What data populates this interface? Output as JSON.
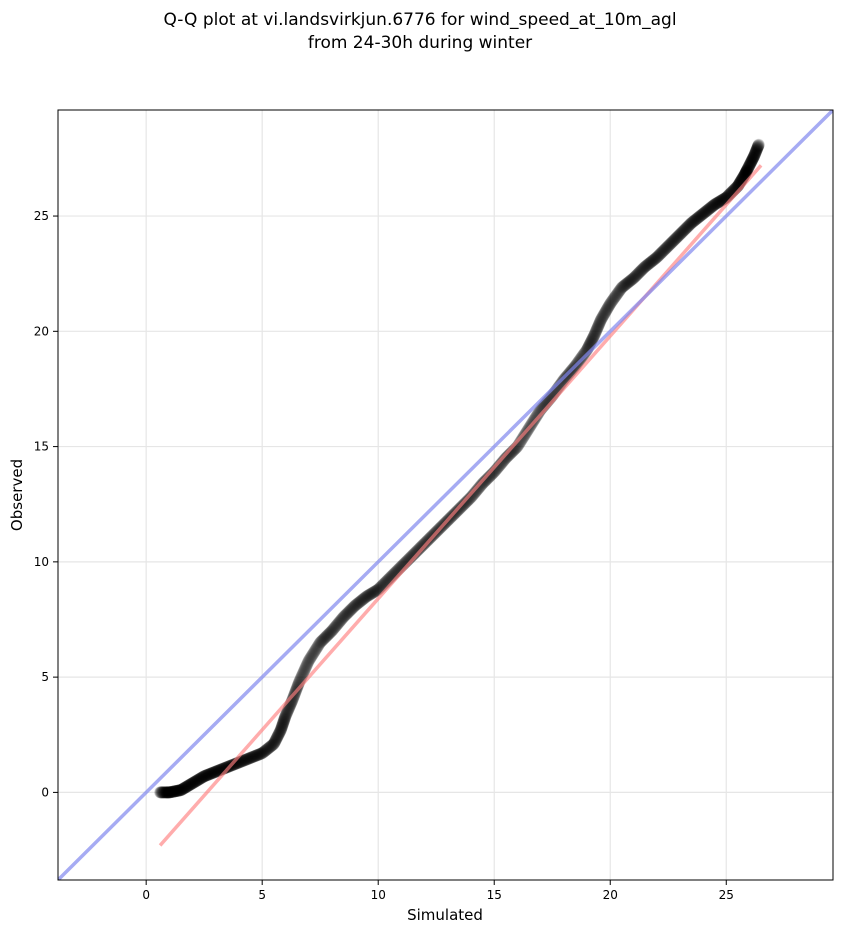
{
  "chart_data": {
    "type": "scatter",
    "title_lines": [
      "Q-Q plot at vi.landsvirkjun.6776 for wind_speed_at_10m_agl",
      "from 24-30h during winter"
    ],
    "xlabel": "Simulated",
    "ylabel": "Observed",
    "xlim": [
      -3.8,
      29.6
    ],
    "ylim": [
      -3.8,
      29.6
    ],
    "xticks": [
      0,
      5,
      10,
      15,
      20,
      25
    ],
    "yticks": [
      0,
      5,
      10,
      15,
      20,
      25
    ],
    "grid": true,
    "colors": {
      "points": "#000000",
      "fit_line": "#ff8080",
      "identity_line": "#8088ee"
    },
    "identity_line": {
      "x": [
        -3.8,
        29.6
      ],
      "y": [
        -3.8,
        29.6
      ]
    },
    "fit_line": {
      "x": [
        0.6,
        26.5
      ],
      "y": [
        -2.3,
        27.2
      ]
    },
    "quantile_curve": {
      "x": [
        0.6,
        1.0,
        1.5,
        2.0,
        2.5,
        3.0,
        3.5,
        4.0,
        4.5,
        5.0,
        5.5,
        5.8,
        6.0,
        6.3,
        6.6,
        7.0,
        7.5,
        8.0,
        8.5,
        9.0,
        9.5,
        10.0,
        10.5,
        11.0,
        11.5,
        12.0,
        12.5,
        13.0,
        13.5,
        14.0,
        14.5,
        15.0,
        15.5,
        16.0,
        16.5,
        17.0,
        17.5,
        18.0,
        18.5,
        19.0,
        19.3,
        19.6,
        20.0,
        20.5,
        21.0,
        21.5,
        22.0,
        22.5,
        23.0,
        23.5,
        24.0,
        24.5,
        25.0,
        25.5,
        25.8,
        26.0,
        26.2,
        26.4
      ],
      "y": [
        0.0,
        0.0,
        0.1,
        0.4,
        0.7,
        0.9,
        1.1,
        1.3,
        1.5,
        1.7,
        2.1,
        2.7,
        3.3,
        4.0,
        4.8,
        5.7,
        6.5,
        7.0,
        7.6,
        8.1,
        8.5,
        8.8,
        9.3,
        9.8,
        10.3,
        10.8,
        11.3,
        11.8,
        12.3,
        12.8,
        13.4,
        13.9,
        14.5,
        15.0,
        15.8,
        16.6,
        17.2,
        17.9,
        18.5,
        19.2,
        19.8,
        20.5,
        21.2,
        21.9,
        22.3,
        22.8,
        23.2,
        23.7,
        24.2,
        24.7,
        25.1,
        25.5,
        25.8,
        26.3,
        26.8,
        27.2,
        27.6,
        28.1
      ]
    }
  }
}
